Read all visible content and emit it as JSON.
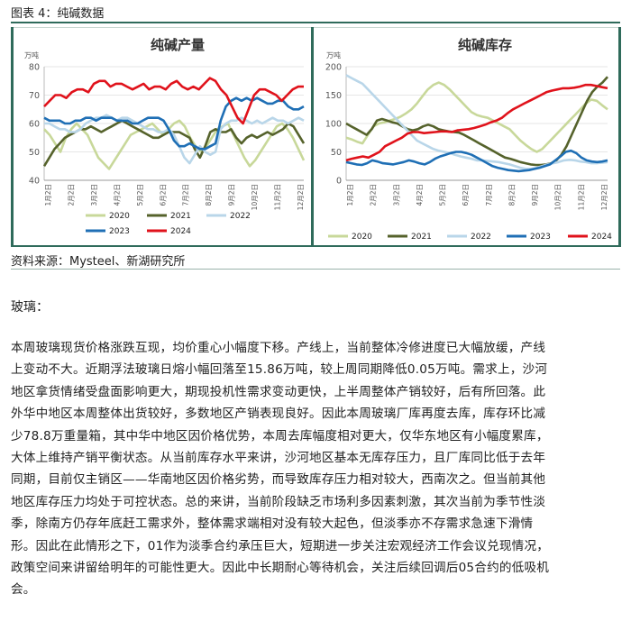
{
  "figure": {
    "title": "图表 4：纯碱数据",
    "source": "资料来源：Mysteel、新湖研究所"
  },
  "colors": {
    "y2020": "#c8d89a",
    "y2021": "#55622b",
    "y2022": "#b9d6e9",
    "y2023": "#1f6fb5",
    "y2024": "#e0121b"
  },
  "chart_data": [
    {
      "type": "line",
      "title": "纯碱产量",
      "unit": "万吨",
      "ylim": [
        40,
        80
      ],
      "yticks": [
        "80",
        "70",
        "60",
        "50",
        "40"
      ],
      "x_ticks": [
        "1月2日",
        "2月2日",
        "3月2日",
        "4月2日",
        "5月2日",
        "6月2日",
        "7月2日",
        "8月2日",
        "9月2日",
        "10月2日",
        "11月2日",
        "12月2日"
      ],
      "series": [
        {
          "name": "2020",
          "color": "#c8d89a",
          "values": [
            58,
            56,
            53,
            50,
            55,
            58,
            60,
            58,
            56,
            52,
            48,
            46,
            44,
            47,
            50,
            53,
            56,
            57,
            58,
            59,
            60,
            58,
            56,
            58,
            60,
            61,
            59,
            55,
            52,
            50,
            52,
            55,
            58,
            59,
            60,
            56,
            52,
            48,
            45,
            47,
            50,
            53,
            56,
            59,
            60,
            58,
            55,
            51,
            47
          ]
        },
        {
          "name": "2021",
          "color": "#55622b",
          "values": [
            45,
            48,
            51,
            53,
            55,
            56,
            57,
            58,
            58,
            59,
            58,
            57,
            58,
            59,
            60,
            61,
            60,
            59,
            58,
            57,
            56,
            55,
            55,
            56,
            57,
            57,
            57,
            56,
            55,
            51,
            48,
            52,
            57,
            58,
            57,
            57,
            58,
            55,
            53,
            55,
            56,
            55,
            56,
            57,
            56,
            57,
            58,
            60,
            59,
            56,
            53
          ]
        },
        {
          "name": "2022",
          "color": "#b9d6e9",
          "values": [
            60,
            60,
            59,
            58,
            58,
            57,
            57,
            58,
            60,
            61,
            62,
            62,
            63,
            62,
            61,
            62,
            62,
            61,
            60,
            59,
            58,
            58,
            57,
            57,
            58,
            56,
            52,
            48,
            46,
            49,
            52,
            50,
            49,
            50,
            58,
            60,
            61,
            61,
            62,
            61,
            60,
            61,
            60,
            61,
            62,
            61,
            61,
            60,
            61,
            62,
            61
          ]
        },
        {
          "name": "2023",
          "color": "#1f6fb5",
          "values": [
            62,
            61,
            61,
            61,
            60,
            60,
            61,
            61,
            62,
            62,
            61,
            62,
            62,
            62,
            61,
            61,
            61,
            60,
            60,
            61,
            62,
            62,
            62,
            61,
            58,
            54,
            52,
            52,
            53,
            52,
            51,
            51,
            52,
            53,
            61,
            66,
            68,
            69,
            68,
            69,
            68,
            69,
            68,
            67,
            67,
            68,
            68,
            66,
            65,
            65,
            66
          ]
        },
        {
          "name": "2024",
          "color": "#e0121b",
          "values": [
            66,
            68,
            70,
            70,
            69,
            71,
            72,
            72,
            71,
            74,
            75,
            75,
            73,
            74,
            74,
            73,
            72,
            73,
            74,
            72,
            73,
            73,
            72,
            74,
            75,
            73,
            72,
            73,
            72,
            74,
            76,
            75,
            72,
            70,
            66,
            62,
            60,
            65,
            70,
            72,
            72,
            71,
            70,
            68,
            70,
            72,
            73,
            73
          ]
        }
      ]
    },
    {
      "type": "line",
      "title": "纯碱库存",
      "unit": "万吨",
      "ylim": [
        0,
        200
      ],
      "yticks": [
        "200",
        "150",
        "100",
        "50",
        "0"
      ],
      "x_ticks": [
        "1月2日",
        "2月2日",
        "3月2日",
        "4月2日",
        "5月2日",
        "6月2日",
        "7月2日",
        "8月2日",
        "9月2日",
        "10月2日",
        "11月2日",
        "12月2日"
      ],
      "series": [
        {
          "name": "2020",
          "color": "#c8d89a",
          "values": [
            75,
            72,
            68,
            65,
            80,
            95,
            100,
            102,
            105,
            108,
            112,
            118,
            125,
            135,
            148,
            160,
            168,
            172,
            168,
            160,
            150,
            140,
            130,
            120,
            115,
            112,
            110,
            105,
            100,
            95,
            90,
            80,
            70,
            62,
            55,
            50,
            55,
            65,
            75,
            85,
            95,
            105,
            115,
            125,
            135,
            142,
            140,
            132,
            125
          ]
        },
        {
          "name": "2021",
          "color": "#55622b",
          "values": [
            100,
            95,
            90,
            85,
            80,
            90,
            105,
            108,
            105,
            102,
            100,
            95,
            90,
            88,
            90,
            95,
            98,
            95,
            90,
            88,
            86,
            85,
            84,
            80,
            75,
            70,
            65,
            60,
            55,
            50,
            45,
            40,
            38,
            35,
            32,
            30,
            28,
            27,
            27,
            28,
            30,
            35,
            45,
            60,
            80,
            100,
            120,
            140,
            155,
            165,
            172,
            182
          ]
        },
        {
          "name": "2022",
          "color": "#b9d6e9",
          "values": [
            185,
            180,
            175,
            170,
            160,
            150,
            140,
            130,
            120,
            110,
            100,
            90,
            80,
            70,
            65,
            60,
            55,
            52,
            50,
            48,
            45,
            42,
            40,
            38,
            35,
            35,
            34,
            33,
            32,
            30,
            28,
            25,
            22,
            20,
            20,
            22,
            25,
            28,
            30,
            32,
            35,
            36,
            35,
            33,
            32,
            30,
            30,
            31,
            32
          ]
        },
        {
          "name": "2023",
          "color": "#1f6fb5",
          "values": [
            32,
            30,
            28,
            27,
            30,
            35,
            33,
            30,
            29,
            28,
            30,
            32,
            35,
            33,
            30,
            28,
            32,
            38,
            42,
            45,
            48,
            50,
            50,
            48,
            45,
            40,
            35,
            30,
            25,
            22,
            20,
            18,
            17,
            16,
            17,
            18,
            20,
            22,
            25,
            28,
            35,
            42,
            50,
            52,
            48,
            40,
            35,
            33,
            32,
            33,
            35
          ]
        },
        {
          "name": "2024",
          "color": "#e0121b",
          "values": [
            35,
            38,
            40,
            42,
            40,
            45,
            50,
            60,
            65,
            70,
            75,
            82,
            85,
            85,
            83,
            84,
            85,
            86,
            86,
            85,
            88,
            89,
            90,
            92,
            95,
            98,
            102,
            105,
            110,
            118,
            125,
            130,
            135,
            140,
            145,
            150,
            155,
            158,
            160,
            162,
            162,
            163,
            165,
            168,
            168,
            166,
            164,
            162
          ]
        }
      ]
    }
  ],
  "section_heading": "玻璃：",
  "paragraph_lines": [
    "本周玻璃现货价格涨跌互现，均价重心小幅度下移。产线上，当前整体冷修进度已大幅放缓，产线",
    "上变动不大。近期浮法玻璃日熔小幅回落至15.86万吨，较上周同期降低0.05万吨。需求上，沙河",
    "地区拿货情绪受盘面影响更大，期现投机性需求变动更快，上半周整体产销较好，后有所回落。此",
    "外华中地区本周整体出货较好，多数地区产销表现良好。因此本周玻璃厂库再度去库，库存环比减",
    "少78.8万重量箱，其中华中地区因价格优势，本周去库幅度相对更大，仅华东地区有小幅度累库，",
    "大体上维持产销平衡状态。从当前库存水平来讲，沙河地区基本无库存压力，且厂库同比低于去年",
    "同期，目前仅主销区——华南地区因价格劣势，而导致库存压力相对较大，西南次之。但当前其他",
    "地区库存压力均处于可控状态。总的来讲，当前阶段缺乏市场利多因素刺激，其次当前为季节性淡",
    "季，除南方仍存年底赶工需求外，整体需求端相对没有较大起色，但淡季亦不存需求急速下滑情",
    "形。因此在此情形之下，01作为淡季合约承压巨大，短期进一步关注宏观经济工作会议兑现情况，",
    "政策空间来讲留给明年的可能性更大。因此中长期耐心等待机会，关注后续回调后05合约的低吸机",
    "会。"
  ]
}
